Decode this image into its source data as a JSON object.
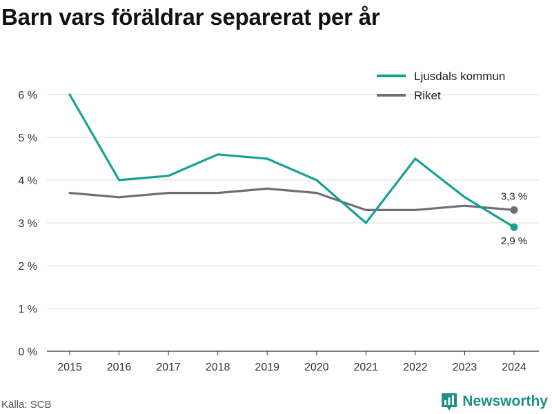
{
  "title": "Barn vars föräldrar separerat per år",
  "source": "Källa: SCB",
  "brand": "Newsworthy",
  "colors": {
    "kommun": "#16a094",
    "riket": "#6e6e78",
    "grid": "#dddddd",
    "brand": "#1f8f86"
  },
  "chart_data": {
    "type": "line",
    "title": "Barn vars föräldrar separerat per år",
    "xlabel": "",
    "ylabel": "",
    "x": [
      "2015",
      "2016",
      "2017",
      "2018",
      "2019",
      "2020",
      "2021",
      "2022",
      "2023",
      "2024"
    ],
    "ylim": [
      0,
      6
    ],
    "yticks": [
      0,
      1,
      2,
      3,
      4,
      5,
      6
    ],
    "ytick_labels": [
      "0 %",
      "1 %",
      "2 %",
      "3 %",
      "4 %",
      "5 %",
      "6 %"
    ],
    "grid": true,
    "legend_position": "top-right",
    "series": [
      {
        "name": "Ljusdals kommun",
        "values": [
          6.0,
          4.0,
          4.1,
          4.6,
          4.5,
          4.0,
          3.0,
          4.5,
          3.6,
          2.9
        ],
        "end_label": "2,9 %"
      },
      {
        "name": "Riket",
        "values": [
          3.7,
          3.6,
          3.7,
          3.7,
          3.8,
          3.7,
          3.3,
          3.3,
          3.4,
          3.3
        ],
        "end_label": "3,3 %"
      }
    ]
  }
}
